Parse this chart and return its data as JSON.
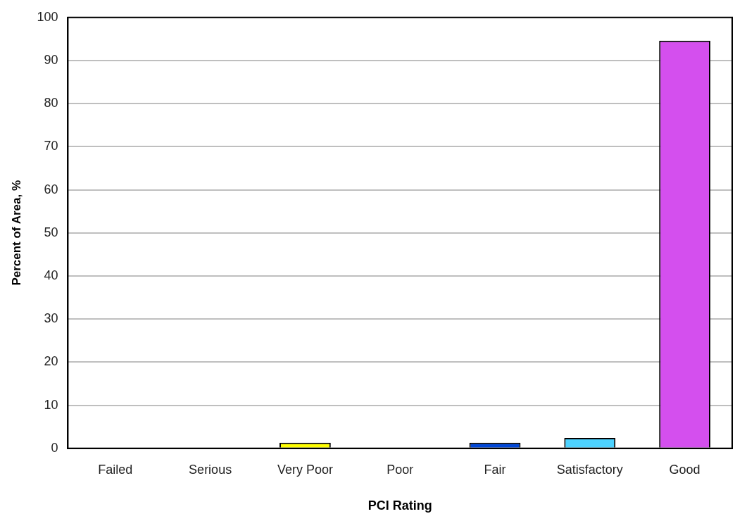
{
  "chart_data": {
    "type": "bar",
    "xlabel": "PCI Rating",
    "ylabel": "Percent of Area, %",
    "categories": [
      "Failed",
      "Serious",
      "Very Poor",
      "Poor",
      "Fair",
      "Satisfactory",
      "Good"
    ],
    "values": [
      0,
      0,
      1.3,
      0,
      1.3,
      2.4,
      94.6
    ],
    "colors": [
      "#c00000",
      "#ff6600",
      "#ffff00",
      "#92d050",
      "#0047d9",
      "#4dd2ff",
      "#d44fee"
    ],
    "ylim": [
      0,
      100
    ],
    "yticks": [
      0,
      10,
      20,
      30,
      40,
      50,
      60,
      70,
      80,
      90,
      100
    ],
    "grid": "y",
    "legend": false
  }
}
